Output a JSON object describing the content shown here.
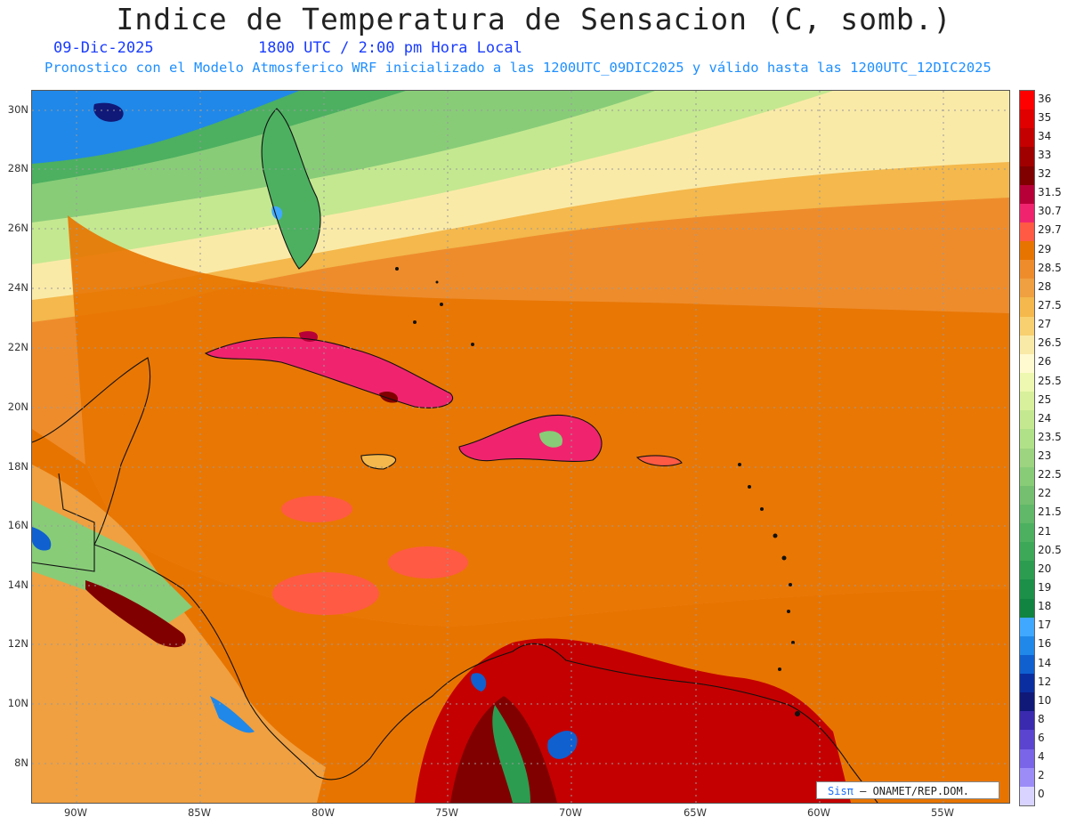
{
  "header": {
    "title": "Indice de Temperatura de Sensacion (C, somb.)",
    "date": "09-Dic-2025",
    "time": "1800 UTC / 2:00 pm Hora Local",
    "subtitle": "Pronostico con el Modelo Atmosferico WRF inicializado a las 1200UTC_09DIC2025 y válido hasta las  1200UTC_12DIC2025"
  },
  "map": {
    "lat_labels": [
      "30N",
      "28N",
      "26N",
      "24N",
      "22N",
      "20N",
      "18N",
      "16N",
      "14N",
      "12N",
      "10N",
      "8N"
    ],
    "lon_labels": [
      "90W",
      "85W",
      "80W",
      "75W",
      "70W",
      "65W",
      "60W",
      "55W"
    ]
  },
  "colorbar": {
    "levels": [
      {
        "label": "36",
        "color": "#ff0000"
      },
      {
        "label": "35",
        "color": "#e00000"
      },
      {
        "label": "34",
        "color": "#c40000"
      },
      {
        "label": "33",
        "color": "#a00000"
      },
      {
        "label": "32",
        "color": "#800000"
      },
      {
        "label": "31.5",
        "color": "#b80038"
      },
      {
        "label": "30.7",
        "color": "#f0246e"
      },
      {
        "label": "29.7",
        "color": "#ff5a44"
      },
      {
        "label": "29",
        "color": "#e87400"
      },
      {
        "label": "28.5",
        "color": "#ee8c2c"
      },
      {
        "label": "28",
        "color": "#f0a040"
      },
      {
        "label": "27.5",
        "color": "#f4b84c"
      },
      {
        "label": "27",
        "color": "#f8d070"
      },
      {
        "label": "26.5",
        "color": "#faeaa8"
      },
      {
        "label": "26",
        "color": "#fffad0"
      },
      {
        "label": "25.5",
        "color": "#eef8b0"
      },
      {
        "label": "25",
        "color": "#d8f09c"
      },
      {
        "label": "24",
        "color": "#c4e890"
      },
      {
        "label": "23.5",
        "color": "#b0e088"
      },
      {
        "label": "23",
        "color": "#9cd480"
      },
      {
        "label": "22.5",
        "color": "#88cc78"
      },
      {
        "label": "22",
        "color": "#74c070"
      },
      {
        "label": "21.5",
        "color": "#60b868"
      },
      {
        "label": "21",
        "color": "#4cb060"
      },
      {
        "label": "20.5",
        "color": "#3ca858"
      },
      {
        "label": "20",
        "color": "#2c9c50"
      },
      {
        "label": "19",
        "color": "#1c9048"
      },
      {
        "label": "18",
        "color": "#108440"
      },
      {
        "label": "17",
        "color": "#40a8ff"
      },
      {
        "label": "16",
        "color": "#2088e8"
      },
      {
        "label": "14",
        "color": "#1060d0"
      },
      {
        "label": "12",
        "color": "#0a2ea0"
      },
      {
        "label": "10",
        "color": "#101878"
      },
      {
        "label": "8",
        "color": "#3a2ab0"
      },
      {
        "label": "6",
        "color": "#5a44d0"
      },
      {
        "label": "4",
        "color": "#7a64e8"
      },
      {
        "label": "2",
        "color": "#9c8cf8"
      },
      {
        "label": "0",
        "color": "#d8d4ff"
      }
    ]
  },
  "credit": {
    "brand": "Sisπ",
    "org": " – ONAMET/REP.DOM."
  }
}
